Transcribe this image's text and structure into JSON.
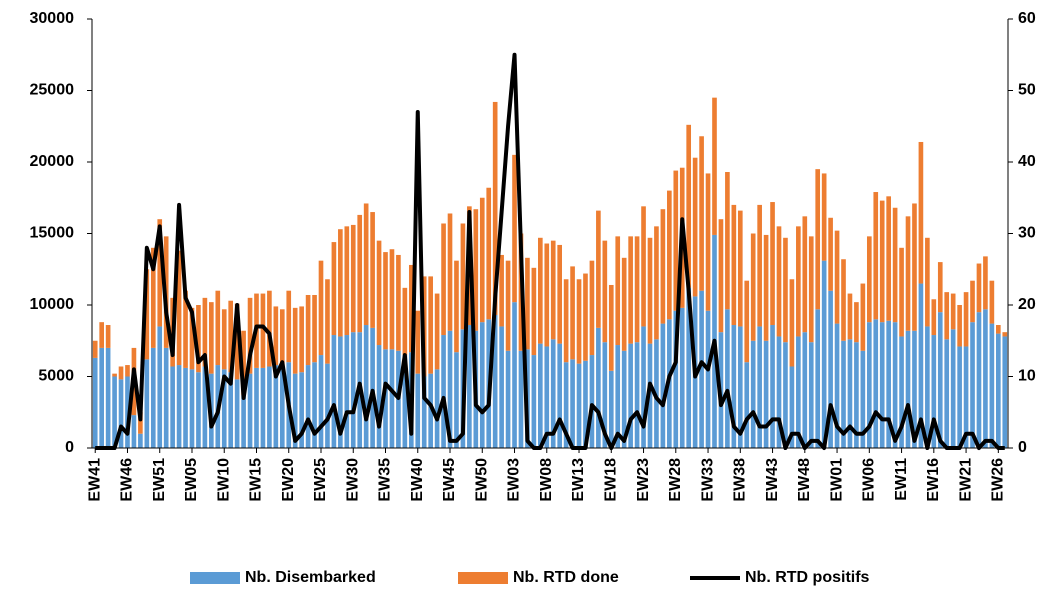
{
  "chart_data": {
    "type": "bar",
    "stacked": true,
    "legend": "bottom",
    "categories": [
      "EW41",
      null,
      null,
      null,
      null,
      "EW46",
      null,
      null,
      null,
      null,
      "EW51",
      null,
      null,
      null,
      null,
      "EW05",
      null,
      null,
      null,
      null,
      "EW10",
      null,
      null,
      null,
      null,
      "EW15",
      null,
      null,
      null,
      null,
      "EW20",
      null,
      null,
      null,
      null,
      "EW25",
      null,
      null,
      null,
      null,
      "EW30",
      null,
      null,
      null,
      null,
      "EW35",
      null,
      null,
      null,
      null,
      "EW40",
      null,
      null,
      null,
      null,
      "EW45",
      null,
      null,
      null,
      null,
      "EW50",
      null,
      null,
      null,
      null,
      "EW03",
      null,
      null,
      null,
      null,
      "EW08",
      null,
      null,
      null,
      null,
      "EW13",
      null,
      null,
      null,
      null,
      "EW18",
      null,
      null,
      null,
      null,
      "EW23",
      null,
      null,
      null,
      null,
      "EW28",
      null,
      null,
      null,
      null,
      "EW33",
      null,
      null,
      null,
      null,
      "EW38",
      null,
      null,
      null,
      null,
      "EW43",
      null,
      null,
      null,
      null,
      "EW48",
      null,
      null,
      null,
      null,
      "EW01",
      null,
      null,
      null,
      null,
      "EW06",
      null,
      null,
      null,
      null,
      "EW11",
      null,
      null,
      null,
      null,
      "EW16",
      null,
      null,
      null,
      null,
      "EW21",
      null,
      null,
      null,
      null,
      "EW26",
      null
    ],
    "series": [
      {
        "name": "Nb. Disembarked",
        "color": "#5b9bd5",
        "values": [
          6300,
          7000,
          7000,
          5000,
          4800,
          5000,
          2300,
          1000,
          6200,
          7000,
          8500,
          7000,
          5700,
          5800,
          5600,
          5500,
          5300,
          5700,
          5200,
          5800,
          5500,
          5300,
          4800,
          3700,
          5200,
          5600,
          5600,
          5700,
          5800,
          5500,
          6000,
          5200,
          5300,
          5800,
          6000,
          6500,
          5900,
          7900,
          7800,
          7900,
          8100,
          8100,
          8600,
          8400,
          7200,
          6900,
          6900,
          6800,
          6500,
          6700,
          5200,
          5000,
          5200,
          5500,
          7900,
          8200,
          6700,
          8300,
          8600,
          8200,
          8800,
          9000,
          9300,
          8500,
          6800,
          10200,
          6800,
          6900,
          6500,
          7300,
          7100,
          7600,
          7300,
          6000,
          6200,
          5900,
          6100,
          6500,
          8400,
          7400,
          5400,
          7200,
          6800,
          7300,
          7400,
          8500,
          7300,
          7600,
          8700,
          9000,
          9600,
          9800,
          11200,
          10600,
          11000,
          9600,
          14900,
          8100,
          9700,
          8600,
          8500,
          6000,
          7500,
          8500,
          7500,
          8600,
          7800,
          7400,
          5700,
          7800,
          8100,
          7400,
          9700,
          13100,
          11000,
          8700,
          7500,
          7600,
          7400,
          6800,
          8800,
          9000,
          8800,
          8900,
          8800,
          7800,
          8200,
          8200,
          11500,
          8500,
          7900,
          9500,
          7600,
          8300,
          7100,
          7100,
          8800,
          9500,
          9700,
          8700,
          8000,
          7800
        ]
      },
      {
        "name": "Nb. RTD done",
        "color": "#ed7d31",
        "values": [
          1200,
          1800,
          1600,
          200,
          900,
          800,
          4700,
          1500,
          6300,
          7000,
          7500,
          7800,
          4800,
          8000,
          5400,
          4300,
          4700,
          4800,
          5000,
          5200,
          4200,
          5000,
          5300,
          4500,
          5300,
          5200,
          5200,
          5300,
          4100,
          4200,
          5000,
          4600,
          4600,
          4900,
          4700,
          6600,
          5900,
          6500,
          7500,
          7600,
          7500,
          8200,
          8500,
          8100,
          7300,
          6800,
          7000,
          6700,
          4700,
          6100,
          4400,
          7000,
          6800,
          5300,
          7800,
          8200,
          6400,
          7400,
          8300,
          8500,
          8700,
          9200,
          14900,
          5000,
          6300,
          10300,
          8200,
          6400,
          6100,
          7400,
          7200,
          6900,
          6900,
          5800,
          6500,
          5900,
          6100,
          6600,
          8200,
          7100,
          6000,
          7600,
          6500,
          7500,
          7400,
          8400,
          7400,
          7900,
          8000,
          9000,
          9800,
          9800,
          11400,
          9700,
          10800,
          9600,
          9600,
          7900,
          9600,
          8400,
          8100,
          5700,
          7500,
          8500,
          7400,
          8600,
          7700,
          7300,
          6100,
          7700,
          8100,
          7400,
          9800,
          6100,
          5100,
          6500,
          5700,
          3200,
          2800,
          4700,
          6000,
          8900,
          8500,
          8700,
          8000,
          6200,
          8000,
          8900,
          9900,
          6200,
          2500,
          3500,
          3300,
          2500,
          2900,
          3800,
          2900,
          3400,
          3700,
          3000,
          600,
          300
        ]
      },
      {
        "name": "Nb. RTD positifs",
        "color": "#000000",
        "type": "line",
        "axis": "y2",
        "values": [
          0,
          0,
          0,
          0,
          3,
          2,
          11,
          4,
          28,
          25,
          31,
          19,
          13,
          34,
          21,
          19,
          12,
          13,
          3,
          5,
          10,
          9,
          20,
          7,
          13,
          17,
          17,
          16,
          10,
          12,
          6,
          1,
          2,
          4,
          2,
          3,
          4,
          6,
          2,
          5,
          5,
          9,
          4,
          8,
          3,
          9,
          8,
          7,
          13,
          2,
          47,
          7,
          6,
          4,
          7,
          1,
          1,
          2,
          33,
          6,
          5,
          6,
          21,
          33,
          45,
          55,
          28,
          1,
          0,
          0,
          2,
          2,
          4,
          2,
          0,
          0,
          0,
          6,
          5,
          2,
          0,
          2,
          1,
          4,
          5,
          3,
          9,
          7,
          6,
          10,
          12,
          32,
          22,
          10,
          12,
          11,
          15,
          6,
          8,
          3,
          2,
          4,
          5,
          3,
          3,
          4,
          4,
          0,
          2,
          2,
          0,
          1,
          1,
          0,
          6,
          3,
          2,
          3,
          2,
          2,
          3,
          5,
          4,
          4,
          1,
          3,
          6,
          1,
          4,
          0,
          4,
          1,
          0,
          0,
          0,
          2,
          2,
          0,
          1,
          1,
          0,
          0
        ]
      }
    ],
    "ylim": [
      0,
      30000
    ],
    "yticks": [
      0,
      5000,
      10000,
      15000,
      20000,
      25000,
      30000
    ],
    "y2lim": [
      0,
      60
    ],
    "y2ticks": [
      0,
      10,
      20,
      30,
      40,
      50,
      60
    ]
  }
}
